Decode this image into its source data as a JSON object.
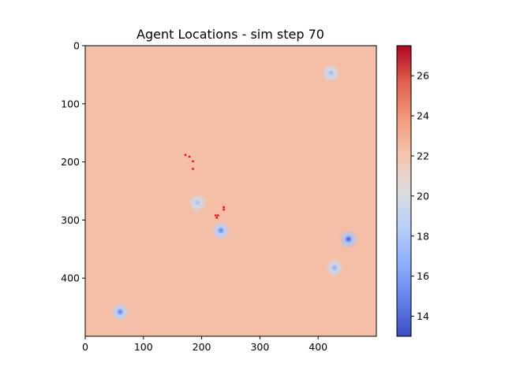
{
  "chart_data": {
    "type": "heatmap",
    "title": "Agent Locations - sim step 70",
    "xlabel": "",
    "ylabel": "",
    "xlim": [
      0,
      500
    ],
    "ylim": [
      500,
      0
    ],
    "x_ticks": [
      0,
      100,
      200,
      300,
      400
    ],
    "y_ticks": [
      0,
      100,
      200,
      300,
      400
    ],
    "grid": false,
    "colormap": "coolwarm",
    "background_value": 22.3,
    "colorbar": {
      "range": [
        13,
        27.5
      ],
      "ticks": [
        14,
        16,
        18,
        20,
        22,
        24,
        26
      ]
    },
    "cold_spots": [
      {
        "x": 422,
        "y": 47,
        "min_value": 17.0
      },
      {
        "x": 193,
        "y": 270,
        "min_value": 17.2
      },
      {
        "x": 233,
        "y": 318,
        "min_value": 14.5
      },
      {
        "x": 452,
        "y": 333,
        "min_value": 13.2
      },
      {
        "x": 428,
        "y": 382,
        "min_value": 16.5
      },
      {
        "x": 60,
        "y": 458,
        "min_value": 14.5
      }
    ],
    "agents": [
      {
        "x": 172,
        "y": 188
      },
      {
        "x": 179,
        "y": 191
      },
      {
        "x": 185,
        "y": 199
      },
      {
        "x": 185,
        "y": 212
      },
      {
        "x": 224,
        "y": 292
      },
      {
        "x": 226,
        "y": 296
      },
      {
        "x": 228,
        "y": 292
      },
      {
        "x": 238,
        "y": 278
      },
      {
        "x": 238,
        "y": 282
      }
    ],
    "agent_color": "#ff0000"
  }
}
